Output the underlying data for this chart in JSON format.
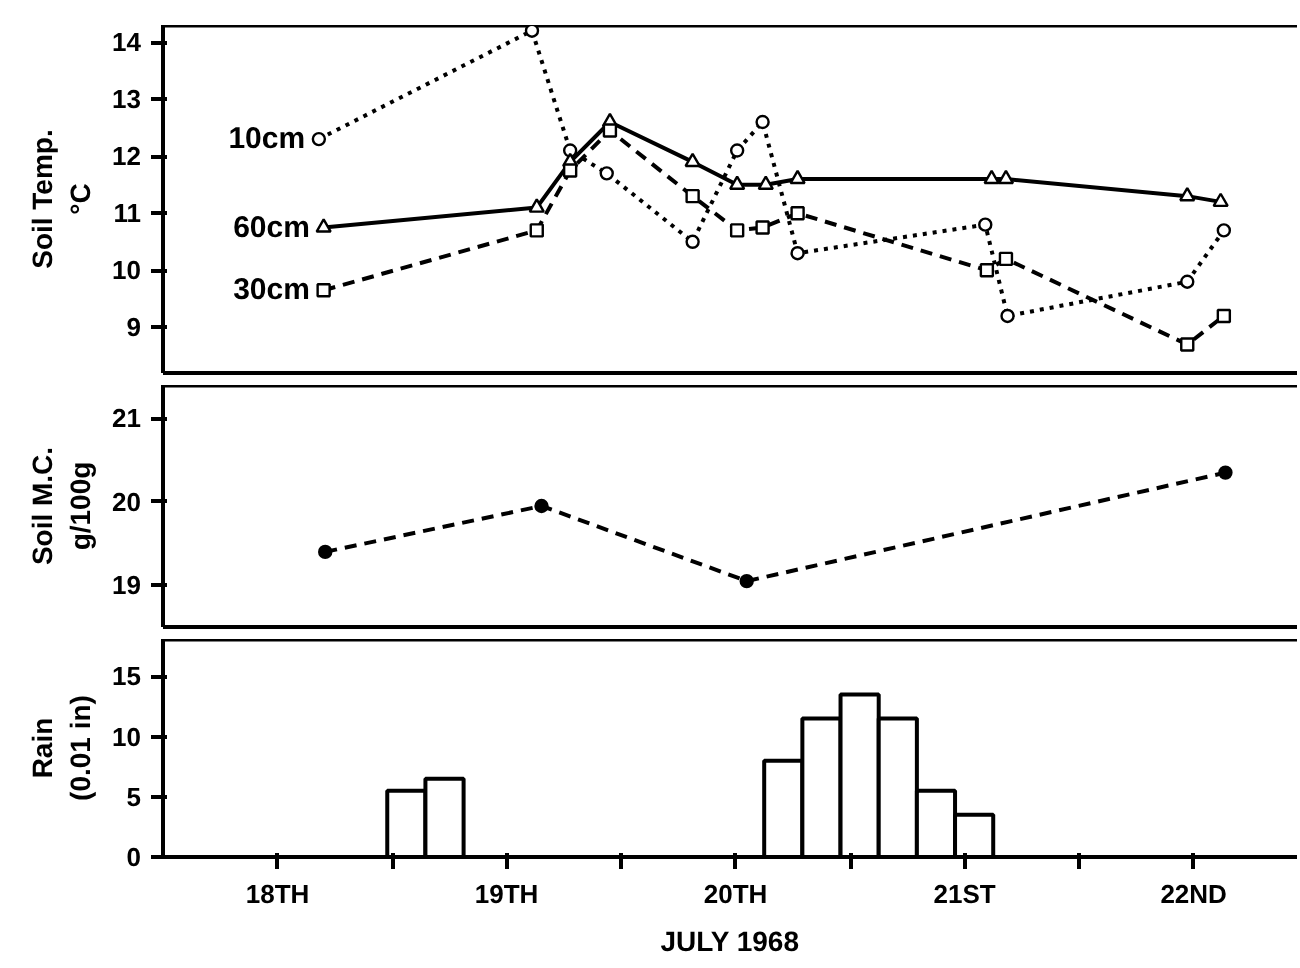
{
  "chart_data": [
    {
      "type": "line",
      "ylabel": "Soil Temp.\n°C",
      "xlim": [
        "1968-07-18T00:00",
        "1968-07-22T22:50"
      ],
      "ylim": [
        8.2,
        14.3
      ],
      "yticks": [
        9,
        10,
        11,
        12,
        13,
        14
      ],
      "tick_labels": "y",
      "grid": false,
      "series": [
        {
          "name": "10cm",
          "color": "#000000",
          "marker": "circle",
          "line_style": "dotted",
          "x": [
            "1968-07-18T16:20",
            "1968-07-19T14:40",
            "1968-07-19T18:40",
            "1968-07-19T22:30",
            "1968-07-20T07:30",
            "1968-07-20T12:10",
            "1968-07-20T14:50",
            "1968-07-20T18:30",
            "1968-07-21T14:10",
            "1968-07-21T16:30",
            "1968-07-22T11:20",
            "1968-07-22T15:10"
          ],
          "values": [
            12.3,
            14.2,
            12.1,
            11.7,
            10.5,
            12.1,
            12.6,
            10.3,
            10.8,
            9.2,
            9.8,
            10.7
          ]
        },
        {
          "name": "60cm",
          "color": "#000000",
          "marker": "triangle",
          "line_style": "solid",
          "x": [
            "1968-07-18T16:50",
            "1968-07-19T15:10",
            "1968-07-19T18:40",
            "1968-07-19T22:50",
            "1968-07-20T07:30",
            "1968-07-20T12:10",
            "1968-07-20T15:10",
            "1968-07-20T18:30",
            "1968-07-21T14:50",
            "1968-07-21T16:20",
            "1968-07-22T11:20",
            "1968-07-22T14:50"
          ],
          "values": [
            10.75,
            11.1,
            11.9,
            12.6,
            11.9,
            11.5,
            11.5,
            11.6,
            11.6,
            11.6,
            11.3,
            11.2
          ]
        },
        {
          "name": "30cm",
          "color": "#000000",
          "marker": "square",
          "line_style": "dashed",
          "x": [
            "1968-07-18T16:50",
            "1968-07-19T15:10",
            "1968-07-19T18:40",
            "1968-07-19T22:50",
            "1968-07-20T07:30",
            "1968-07-20T12:10",
            "1968-07-20T14:50",
            "1968-07-20T18:30",
            "1968-07-21T14:20",
            "1968-07-21T16:20",
            "1968-07-22T11:20",
            "1968-07-22T15:10"
          ],
          "values": [
            9.65,
            10.7,
            11.75,
            12.45,
            11.3,
            10.7,
            10.75,
            11.0,
            10.0,
            10.2,
            8.7,
            9.2
          ]
        }
      ]
    },
    {
      "type": "line",
      "ylabel": "Soil M.C.\ng/100g",
      "xlim": [
        "1968-07-18T00:00",
        "1968-07-22T22:50"
      ],
      "ylim": [
        18.5,
        21.4
      ],
      "yticks": [
        19,
        20,
        21
      ],
      "tick_labels": "y",
      "grid": false,
      "series": [
        {
          "color": "#000000",
          "marker": "circle",
          "line_style": "dashed",
          "x": [
            "1968-07-18T17:00",
            "1968-07-19T15:40",
            "1968-07-20T13:10",
            "1968-07-22T15:20"
          ],
          "values": [
            19.4,
            19.95,
            19.05,
            20.35
          ]
        }
      ]
    },
    {
      "type": "histogram",
      "ylabel": "Rain\n(0.01 in)",
      "xlabel": "JULY 1968",
      "xlim": [
        "1968-07-18T00:00",
        "1968-07-22T22:50"
      ],
      "ylim": [
        0,
        18.1
      ],
      "yticks": [
        0,
        5,
        10,
        15
      ],
      "grid": false,
      "color": "#ffffff",
      "xticks": [
        {
          "value": "1968-07-19",
          "label": null
        },
        {
          "value": "1968-07-20",
          "label": null
        },
        {
          "value": "1968-07-21",
          "label": null
        },
        {
          "value": "1968-07-22",
          "label": null
        },
        {
          "value": "1968-07-18T12:00",
          "label": "18TH"
        },
        {
          "value": "1968-07-19T12:00",
          "label": "19TH"
        },
        {
          "value": "1968-07-20T12:00",
          "label": "20TH"
        },
        {
          "value": "1968-07-21T12:00",
          "label": "21ST"
        },
        {
          "value": "1968-07-22T12:00",
          "label": "22ND"
        }
      ],
      "bins": [
        "1968-07-18T23:30",
        "1968-07-19T03:30",
        "1968-07-19T07:30",
        "1968-07-20T15:00",
        "1968-07-20T19:00",
        "1968-07-20T23:00",
        "1968-07-21T03:00",
        "1968-07-21T07:00",
        "1968-07-21T11:00",
        "1968-07-21T15:00"
      ],
      "values": [
        5.5,
        6.5,
        0,
        8,
        11.5,
        13.5,
        11.5,
        5.5,
        3.5
      ]
    }
  ]
}
